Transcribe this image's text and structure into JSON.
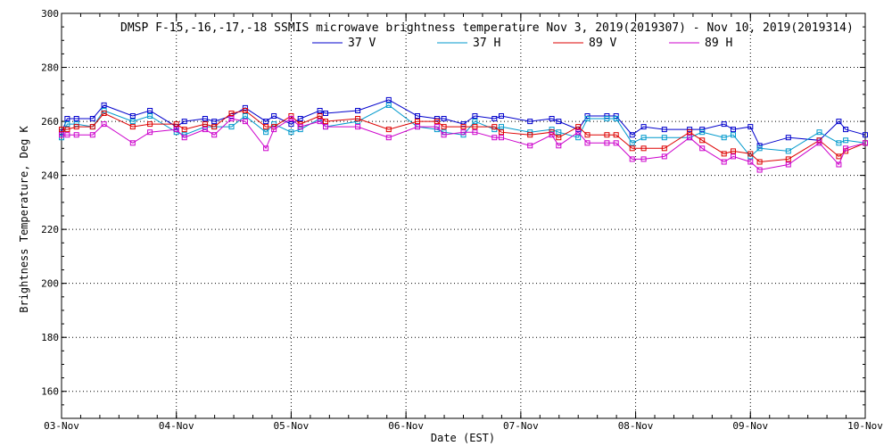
{
  "chart_data": {
    "type": "line",
    "title": "DMSP F-15,-16,-17,-18 SSMIS microwave brightness temperature Nov  3, 2019(2019307) - Nov 10, 2019(2019314)",
    "xlabel": "Date (EST)",
    "ylabel": "Brightness Temperature, Deg K",
    "ylim": [
      150,
      300
    ],
    "xlim": [
      0,
      7
    ],
    "grid": true,
    "legend_position": "top-center",
    "x_ticks": [
      {
        "pos": 0,
        "label": "03-Nov"
      },
      {
        "pos": 1,
        "label": "04-Nov"
      },
      {
        "pos": 2,
        "label": "05-Nov"
      },
      {
        "pos": 3,
        "label": "06-Nov"
      },
      {
        "pos": 4,
        "label": "07-Nov"
      },
      {
        "pos": 5,
        "label": "08-Nov"
      },
      {
        "pos": 6,
        "label": "09-Nov"
      },
      {
        "pos": 7,
        "label": "10-Nov"
      }
    ],
    "y_ticks": [
      160,
      180,
      200,
      220,
      240,
      260,
      280,
      300
    ],
    "series": [
      {
        "name": "37 V",
        "color": "#0000cc",
        "x": [
          0.0,
          0.05,
          0.13,
          0.27,
          0.37,
          0.62,
          0.77,
          1.0,
          1.07,
          1.25,
          1.33,
          1.48,
          1.6,
          1.78,
          1.85,
          2.0,
          2.08,
          2.25,
          2.3,
          2.58,
          2.85,
          3.1,
          3.27,
          3.33,
          3.5,
          3.6,
          3.77,
          3.83,
          4.08,
          4.27,
          4.33,
          4.5,
          4.58,
          4.75,
          4.83,
          4.97,
          5.07,
          5.25,
          5.47,
          5.58,
          5.77,
          5.85,
          6.0,
          6.08,
          6.33,
          6.6,
          6.77,
          6.83,
          7.0
        ],
        "values": [
          256,
          261,
          261,
          261,
          266,
          262,
          264,
          258,
          260,
          261,
          260,
          262,
          265,
          260,
          262,
          259,
          261,
          264,
          263,
          264,
          268,
          262,
          261,
          261,
          259,
          262,
          261,
          262,
          260,
          261,
          260,
          257,
          262,
          262,
          262,
          255,
          258,
          257,
          257,
          257,
          259,
          257,
          258,
          251,
          254,
          253,
          260,
          257,
          255
        ]
      },
      {
        "name": "37 H",
        "color": "#0099cc",
        "x": [
          0.0,
          0.05,
          0.13,
          0.27,
          0.37,
          0.62,
          0.77,
          1.0,
          1.07,
          1.25,
          1.33,
          1.48,
          1.6,
          1.78,
          1.85,
          2.0,
          2.08,
          2.25,
          2.3,
          2.58,
          2.85,
          3.1,
          3.27,
          3.33,
          3.5,
          3.6,
          3.77,
          3.83,
          4.08,
          4.27,
          4.33,
          4.5,
          4.58,
          4.75,
          4.83,
          4.97,
          5.07,
          5.25,
          5.47,
          5.58,
          5.77,
          5.85,
          6.0,
          6.08,
          6.33,
          6.6,
          6.77,
          6.83,
          7.0
        ],
        "values": [
          254,
          259,
          259,
          258,
          264,
          260,
          262,
          256,
          255,
          258,
          258,
          258,
          262,
          256,
          259,
          256,
          257,
          261,
          258,
          260,
          266,
          258,
          257,
          256,
          255,
          260,
          257,
          258,
          256,
          257,
          256,
          254,
          261,
          261,
          261,
          252,
          254,
          254,
          254,
          256,
          254,
          255,
          247,
          250,
          249,
          256,
          252,
          253,
          252
        ]
      },
      {
        "name": "89 V",
        "color": "#dd0000",
        "x": [
          0.0,
          0.05,
          0.13,
          0.27,
          0.37,
          0.62,
          0.77,
          1.0,
          1.07,
          1.25,
          1.33,
          1.48,
          1.6,
          1.78,
          1.85,
          2.0,
          2.08,
          2.25,
          2.3,
          2.58,
          2.85,
          3.1,
          3.27,
          3.33,
          3.5,
          3.6,
          3.77,
          3.83,
          4.08,
          4.27,
          4.33,
          4.5,
          4.58,
          4.75,
          4.83,
          4.97,
          5.07,
          5.25,
          5.47,
          5.58,
          5.77,
          5.85,
          6.0,
          6.08,
          6.33,
          6.6,
          6.77,
          6.83,
          7.0
        ],
        "values": [
          257,
          257,
          258,
          258,
          263,
          258,
          259,
          259,
          257,
          259,
          258,
          263,
          264,
          258,
          258,
          262,
          259,
          262,
          260,
          261,
          257,
          260,
          260,
          258,
          258,
          258,
          258,
          256,
          255,
          256,
          254,
          258,
          255,
          255,
          255,
          250,
          250,
          250,
          256,
          253,
          248,
          249,
          248,
          245,
          246,
          253,
          247,
          249,
          252
        ]
      },
      {
        "name": "89 H",
        "color": "#cc00cc",
        "x": [
          0.0,
          0.05,
          0.13,
          0.27,
          0.37,
          0.62,
          0.77,
          1.0,
          1.07,
          1.25,
          1.33,
          1.48,
          1.6,
          1.78,
          1.85,
          2.0,
          2.08,
          2.25,
          2.3,
          2.58,
          2.85,
          3.1,
          3.27,
          3.33,
          3.5,
          3.6,
          3.77,
          3.83,
          4.08,
          4.27,
          4.33,
          4.5,
          4.58,
          4.75,
          4.83,
          4.97,
          5.07,
          5.25,
          5.47,
          5.58,
          5.77,
          5.85,
          6.0,
          6.08,
          6.33,
          6.6,
          6.77,
          6.83,
          7.0
        ],
        "values": [
          255,
          255,
          255,
          255,
          259,
          252,
          256,
          257,
          254,
          257,
          255,
          261,
          260,
          250,
          257,
          261,
          258,
          260,
          258,
          258,
          254,
          258,
          258,
          255,
          256,
          256,
          254,
          254,
          251,
          255,
          251,
          256,
          252,
          252,
          252,
          246,
          246,
          247,
          254,
          250,
          245,
          247,
          245,
          242,
          244,
          252,
          244,
          250,
          252
        ]
      }
    ]
  }
}
